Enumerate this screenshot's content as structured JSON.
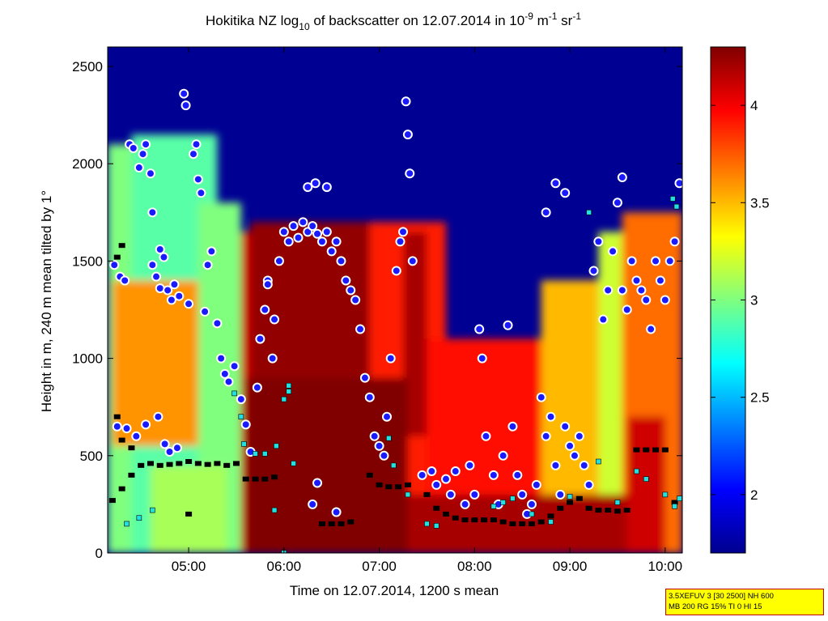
{
  "chart_data": {
    "type": "heatmap",
    "title": {
      "part1": "Hokitika NZ log",
      "sub": "10",
      "part2": " of backscatter on 12.07.2014 in 10",
      "sup1": "-9",
      "part3": " m",
      "sup2": "-1",
      "part4": " sr",
      "sup3": "-1"
    },
    "xlabel": "Time on 12.07.2014, 1200 s mean",
    "ylabel": "Height in m, 240 m mean tilted by 1°",
    "x_ticks": [
      "05:00",
      "06:00",
      "07:00",
      "08:00",
      "09:00",
      "10:00"
    ],
    "x_tick_hours": [
      5,
      6,
      7,
      8,
      9,
      10
    ],
    "xlim_hours": [
      4.15,
      10.18
    ],
    "y_ticks": [
      0,
      500,
      1000,
      1500,
      2000,
      2500
    ],
    "ylim": [
      0,
      2600
    ],
    "colorbar": {
      "ticks": [
        2,
        2.5,
        3,
        3.5,
        4
      ],
      "range": [
        1.7,
        4.3
      ],
      "colormap": "jet"
    },
    "background_value": 1.75,
    "regions": [
      {
        "x": [
          4.15,
          4.45
        ],
        "y": [
          0,
          2100
        ],
        "value": 3.0
      },
      {
        "x": [
          4.4,
          5.3
        ],
        "y": [
          0,
          2150
        ],
        "value": 2.9
      },
      {
        "x": [
          4.2,
          5.2
        ],
        "y": [
          550,
          1400
        ],
        "value": 3.6
      },
      {
        "x": [
          5.1,
          5.55
        ],
        "y": [
          0,
          1800
        ],
        "value": 3.0
      },
      {
        "x": [
          4.6,
          5.4
        ],
        "y": [
          0,
          450
        ],
        "value": 3.1
      },
      {
        "x": [
          5.55,
          6.2
        ],
        "y": [
          0,
          1650
        ],
        "value": 4.1
      },
      {
        "x": [
          5.65,
          6.9
        ],
        "y": [
          0,
          1700
        ],
        "value": 4.25
      },
      {
        "x": [
          6.9,
          7.7
        ],
        "y": [
          0,
          1700
        ],
        "value": 3.9
      },
      {
        "x": [
          7.25,
          7.5
        ],
        "y": [
          600,
          1650
        ],
        "value": 4.2
      },
      {
        "x": [
          7.5,
          8.7
        ],
        "y": [
          0,
          1100
        ],
        "value": 3.95
      },
      {
        "x": [
          8.7,
          9.6
        ],
        "y": [
          0,
          1400
        ],
        "value": 3.5
      },
      {
        "x": [
          9.3,
          9.85
        ],
        "y": [
          0,
          1650
        ],
        "value": 3.2
      },
      {
        "x": [
          9.55,
          10.18
        ],
        "y": [
          0,
          1750
        ],
        "value": 3.7
      },
      {
        "x": [
          9.6,
          10.0
        ],
        "y": [
          0,
          700
        ],
        "value": 4.1
      },
      {
        "x": [
          7.2,
          9.6
        ],
        "y": [
          0,
          300
        ],
        "value": 4.2
      },
      {
        "x": [
          5.6,
          7.3
        ],
        "y": [
          0,
          900
        ],
        "value": 4.3
      }
    ],
    "cloud_markers": [
      [
        4.22,
        1480
      ],
      [
        4.28,
        1420
      ],
      [
        4.33,
        1400
      ],
      [
        4.38,
        2100
      ],
      [
        4.42,
        2080
      ],
      [
        4.48,
        1980
      ],
      [
        4.52,
        2050
      ],
      [
        4.55,
        2100
      ],
      [
        4.6,
        1950
      ],
      [
        4.62,
        1480
      ],
      [
        4.66,
        1420
      ],
      [
        4.7,
        1360
      ],
      [
        4.74,
        1520
      ],
      [
        4.78,
        1350
      ],
      [
        4.82,
        1300
      ],
      [
        4.85,
        1380
      ],
      [
        4.9,
        1320
      ],
      [
        4.95,
        2360
      ],
      [
        4.97,
        2300
      ],
      [
        5.0,
        1280
      ],
      [
        5.05,
        2050
      ],
      [
        5.08,
        2100
      ],
      [
        5.1,
        1920
      ],
      [
        5.13,
        1850
      ],
      [
        5.17,
        1240
      ],
      [
        5.2,
        1480
      ],
      [
        5.24,
        1550
      ],
      [
        5.3,
        1180
      ],
      [
        5.34,
        1000
      ],
      [
        5.38,
        920
      ],
      [
        5.42,
        880
      ],
      [
        5.48,
        960
      ],
      [
        4.62,
        1750
      ],
      [
        4.7,
        1560
      ],
      [
        4.25,
        650
      ],
      [
        4.35,
        640
      ],
      [
        4.45,
        600
      ],
      [
        4.55,
        660
      ],
      [
        4.68,
        700
      ],
      [
        4.75,
        560
      ],
      [
        4.8,
        520
      ],
      [
        4.88,
        540
      ],
      [
        5.55,
        790
      ],
      [
        5.6,
        660
      ],
      [
        5.65,
        520
      ],
      [
        5.72,
        850
      ],
      [
        5.75,
        1100
      ],
      [
        5.8,
        1250
      ],
      [
        5.83,
        1400
      ],
      [
        5.88,
        1000
      ],
      [
        5.9,
        1200
      ],
      [
        5.95,
        1500
      ],
      [
        6.0,
        1650
      ],
      [
        6.05,
        1600
      ],
      [
        6.1,
        1680
      ],
      [
        6.15,
        1620
      ],
      [
        6.2,
        1700
      ],
      [
        6.25,
        1650
      ],
      [
        6.3,
        1680
      ],
      [
        6.35,
        1640
      ],
      [
        6.4,
        1600
      ],
      [
        6.45,
        1650
      ],
      [
        6.5,
        1550
      ],
      [
        6.55,
        1600
      ],
      [
        6.6,
        1500
      ],
      [
        6.65,
        1400
      ],
      [
        6.7,
        1350
      ],
      [
        6.75,
        1300
      ],
      [
        6.8,
        1150
      ],
      [
        6.85,
        900
      ],
      [
        6.9,
        800
      ],
      [
        6.95,
        600
      ],
      [
        7.0,
        550
      ],
      [
        7.05,
        500
      ],
      [
        7.08,
        700
      ],
      [
        7.12,
        1000
      ],
      [
        7.18,
        1450
      ],
      [
        7.22,
        1600
      ],
      [
        7.25,
        1650
      ],
      [
        7.28,
        2320
      ],
      [
        7.3,
        2150
      ],
      [
        7.32,
        1950
      ],
      [
        7.35,
        1500
      ],
      [
        6.25,
        1880
      ],
      [
        6.33,
        1900
      ],
      [
        6.45,
        1880
      ],
      [
        5.83,
        1380
      ],
      [
        6.35,
        360
      ],
      [
        6.55,
        210
      ],
      [
        6.3,
        250
      ],
      [
        7.45,
        400
      ],
      [
        7.55,
        420
      ],
      [
        7.6,
        350
      ],
      [
        7.7,
        380
      ],
      [
        7.75,
        300
      ],
      [
        7.8,
        420
      ],
      [
        7.9,
        250
      ],
      [
        7.95,
        450
      ],
      [
        8.0,
        300
      ],
      [
        8.05,
        1150
      ],
      [
        8.08,
        1000
      ],
      [
        8.12,
        600
      ],
      [
        8.2,
        400
      ],
      [
        8.25,
        250
      ],
      [
        8.3,
        500
      ],
      [
        8.35,
        1170
      ],
      [
        8.4,
        650
      ],
      [
        8.45,
        400
      ],
      [
        8.5,
        300
      ],
      [
        8.55,
        200
      ],
      [
        8.6,
        250
      ],
      [
        8.65,
        350
      ],
      [
        8.7,
        800
      ],
      [
        8.75,
        600
      ],
      [
        8.8,
        700
      ],
      [
        8.85,
        450
      ],
      [
        8.9,
        300
      ],
      [
        8.95,
        650
      ],
      [
        9.0,
        550
      ],
      [
        9.05,
        500
      ],
      [
        9.1,
        600
      ],
      [
        9.15,
        450
      ],
      [
        9.2,
        350
      ],
      [
        9.25,
        1450
      ],
      [
        9.3,
        1600
      ],
      [
        9.35,
        1200
      ],
      [
        9.4,
        1350
      ],
      [
        9.45,
        1550
      ],
      [
        9.5,
        1800
      ],
      [
        9.55,
        1350
      ],
      [
        9.6,
        1250
      ],
      [
        9.65,
        1500
      ],
      [
        9.7,
        1400
      ],
      [
        9.75,
        1350
      ],
      [
        9.8,
        1300
      ],
      [
        9.85,
        1150
      ],
      [
        9.9,
        1500
      ],
      [
        9.95,
        1400
      ],
      [
        10.0,
        1300
      ],
      [
        10.05,
        1500
      ],
      [
        10.1,
        1600
      ],
      [
        10.15,
        1900
      ],
      [
        8.85,
        1900
      ],
      [
        8.95,
        1850
      ],
      [
        8.75,
        1750
      ],
      [
        9.55,
        1930
      ]
    ],
    "base_markers": [
      [
        4.2,
        270
      ],
      [
        4.3,
        330
      ],
      [
        4.4,
        400
      ],
      [
        4.5,
        450
      ],
      [
        4.6,
        460
      ],
      [
        4.7,
        450
      ],
      [
        4.8,
        455
      ],
      [
        4.9,
        460
      ],
      [
        5.0,
        470
      ],
      [
        5.1,
        460
      ],
      [
        5.2,
        455
      ],
      [
        5.3,
        460
      ],
      [
        5.4,
        450
      ],
      [
        5.5,
        460
      ],
      [
        5.6,
        380
      ],
      [
        5.7,
        380
      ],
      [
        5.8,
        380
      ],
      [
        5.9,
        390
      ],
      [
        6.4,
        150
      ],
      [
        6.5,
        150
      ],
      [
        6.6,
        150
      ],
      [
        6.7,
        160
      ],
      [
        6.9,
        400
      ],
      [
        7.0,
        350
      ],
      [
        7.1,
        340
      ],
      [
        7.2,
        340
      ],
      [
        7.3,
        350
      ],
      [
        7.5,
        300
      ],
      [
        7.6,
        230
      ],
      [
        7.7,
        200
      ],
      [
        7.8,
        180
      ],
      [
        7.9,
        170
      ],
      [
        8.0,
        170
      ],
      [
        8.1,
        170
      ],
      [
        8.2,
        170
      ],
      [
        8.3,
        160
      ],
      [
        8.4,
        150
      ],
      [
        8.5,
        150
      ],
      [
        8.6,
        150
      ],
      [
        8.7,
        160
      ],
      [
        8.8,
        190
      ],
      [
        8.9,
        230
      ],
      [
        9.0,
        260
      ],
      [
        9.1,
        280
      ],
      [
        9.2,
        230
      ],
      [
        9.3,
        220
      ],
      [
        9.4,
        220
      ],
      [
        9.5,
        215
      ],
      [
        9.6,
        220
      ],
      [
        9.7,
        530
      ],
      [
        9.8,
        530
      ],
      [
        9.9,
        530
      ],
      [
        10.0,
        530
      ],
      [
        10.1,
        260
      ],
      [
        5.0,
        200
      ],
      [
        4.3,
        580
      ],
      [
        4.4,
        540
      ],
      [
        4.25,
        700
      ],
      [
        4.3,
        1580
      ],
      [
        4.25,
        1520
      ]
    ],
    "extra_markers": [
      [
        6.0,
        1
      ],
      [
        5.7,
        510
      ],
      [
        5.8,
        510
      ],
      [
        6.0,
        790
      ],
      [
        6.05,
        830
      ],
      [
        5.92,
        550
      ],
      [
        6.1,
        460
      ],
      [
        4.35,
        150
      ],
      [
        4.48,
        180
      ],
      [
        4.62,
        220
      ],
      [
        5.48,
        820
      ],
      [
        5.55,
        700
      ],
      [
        5.58,
        560
      ],
      [
        5.9,
        220
      ],
      [
        6.05,
        860
      ],
      [
        7.1,
        590
      ],
      [
        7.15,
        450
      ],
      [
        7.3,
        300
      ],
      [
        7.5,
        150
      ],
      [
        7.6,
        140
      ],
      [
        8.2,
        240
      ],
      [
        8.3,
        260
      ],
      [
        8.4,
        280
      ],
      [
        8.6,
        200
      ],
      [
        8.8,
        160
      ],
      [
        9.0,
        290
      ],
      [
        9.3,
        470
      ],
      [
        9.5,
        260
      ],
      [
        9.7,
        420
      ],
      [
        9.8,
        380
      ],
      [
        10.0,
        300
      ],
      [
        10.1,
        240
      ],
      [
        10.15,
        280
      ],
      [
        9.2,
        1750
      ],
      [
        10.12,
        1780
      ],
      [
        10.08,
        1820
      ]
    ],
    "info_box": {
      "line1": "3.5XEFUV 3 [30 2500] NH 600",
      "line2": "MB 200 RG 15% TI 0 HI 15"
    }
  }
}
